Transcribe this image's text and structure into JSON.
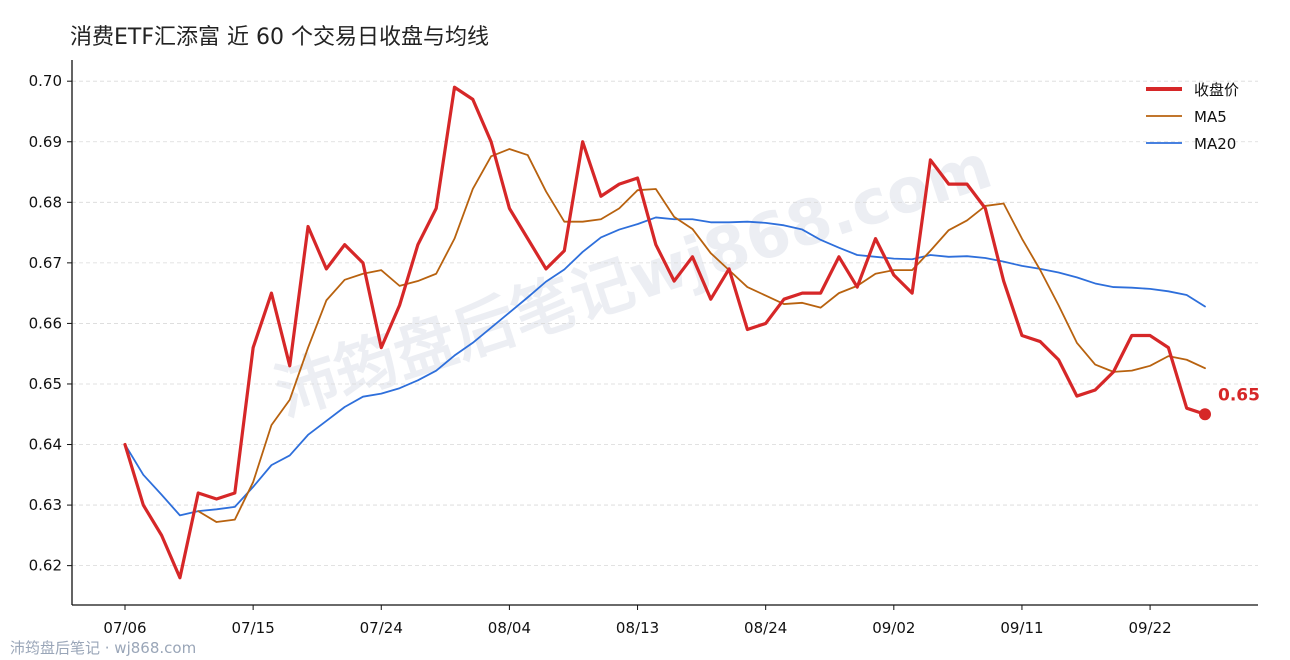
{
  "colors": {
    "close": "#d62728",
    "ma5": "#b8620f",
    "ma20": "#2e6fdb",
    "grid": "#d9d9d9",
    "axis": "#111111"
  },
  "footer_text": "沛筠盘后笔记 · wj868.com",
  "watermark_text": "沛筠盘后笔记wj868.com",
  "chart_data": {
    "type": "line",
    "title": "消费ETF汇添富 近 60 个交易日收盘与均线",
    "xlabel": "",
    "ylabel": "",
    "ylim": [
      0.6135,
      0.7035
    ],
    "yticks": [
      "0.62",
      "0.63",
      "0.64",
      "0.65",
      "0.66",
      "0.67",
      "0.68",
      "0.69",
      "0.70"
    ],
    "ytick_values": [
      0.62,
      0.63,
      0.64,
      0.65,
      0.66,
      0.67,
      0.68,
      0.69,
      0.7
    ],
    "xticks": [
      "07/06",
      "07/15",
      "07/24",
      "08/04",
      "08/13",
      "08/24",
      "09/02",
      "09/11",
      "09/22"
    ],
    "xtick_index": [
      0,
      7,
      14,
      21,
      28,
      35,
      42,
      49,
      56
    ],
    "grid": "horizontal",
    "legend_position": "top-right",
    "x": [
      "07/06",
      "07/07",
      "07/08",
      "07/09",
      "07/10",
      "07/13",
      "07/14",
      "07/15",
      "07/16",
      "07/17",
      "07/20",
      "07/21",
      "07/22",
      "07/23",
      "07/24",
      "07/27",
      "07/28",
      "07/29",
      "07/30",
      "07/31",
      "08/03",
      "08/04",
      "08/05",
      "08/06",
      "08/07",
      "08/10",
      "08/11",
      "08/12",
      "08/13",
      "08/14",
      "08/17",
      "08/18",
      "08/19",
      "08/20",
      "08/21",
      "08/24",
      "08/25",
      "08/26",
      "08/27",
      "08/28",
      "08/31",
      "09/01",
      "09/02",
      "09/03",
      "09/04",
      "09/07",
      "09/08",
      "09/09",
      "09/10",
      "09/11",
      "09/14",
      "09/15",
      "09/16",
      "09/17",
      "09/18",
      "09/21",
      "09/22",
      "09/23",
      "09/24",
      "09/25"
    ],
    "series": [
      {
        "name": "收盘价",
        "values": [
          0.64,
          0.63,
          0.625,
          0.618,
          0.632,
          0.631,
          0.632,
          0.656,
          0.665,
          0.653,
          0.676,
          0.669,
          0.673,
          0.67,
          0.656,
          0.663,
          0.673,
          0.679,
          0.699,
          0.697,
          0.69,
          0.679,
          0.674,
          0.669,
          0.672,
          0.69,
          0.681,
          0.683,
          0.684,
          0.673,
          0.667,
          0.671,
          0.664,
          0.669,
          0.659,
          0.66,
          0.664,
          0.665,
          0.665,
          0.671,
          0.666,
          0.674,
          0.668,
          0.665,
          0.687,
          0.683,
          0.683,
          0.679,
          0.667,
          0.658,
          0.657,
          0.654,
          0.648,
          0.649,
          0.652,
          0.658,
          0.658,
          0.656,
          0.646,
          0.645
        ]
      },
      {
        "name": "MA5",
        "values": [
          null,
          null,
          null,
          null,
          0.629,
          0.6272,
          0.6276,
          0.6338,
          0.6432,
          0.6474,
          0.656,
          0.6638,
          0.6672,
          0.6682,
          0.6688,
          0.6662,
          0.667,
          0.6682,
          0.674,
          0.6822,
          0.6876,
          0.6888,
          0.6878,
          0.6818,
          0.6768,
          0.6768,
          0.6772,
          0.679,
          0.682,
          0.6822,
          0.6776,
          0.6756,
          0.6716,
          0.6688,
          0.666,
          0.6646,
          0.6632,
          0.6634,
          0.6626,
          0.665,
          0.6662,
          0.6682,
          0.6688,
          0.6688,
          0.672,
          0.6754,
          0.677,
          0.6794,
          0.6798,
          0.674,
          0.6688,
          0.663,
          0.6568,
          0.6532,
          0.652,
          0.6522,
          0.653,
          0.6546,
          0.654,
          0.6526
        ]
      },
      {
        "name": "MA20",
        "values": [
          0.64,
          0.635,
          0.6317,
          0.6283,
          0.629,
          0.6293,
          0.6297,
          0.633,
          0.6366,
          0.6382,
          0.6416,
          0.6439,
          0.6462,
          0.6479,
          0.6484,
          0.6493,
          0.6506,
          0.6522,
          0.6547,
          0.6568,
          0.6593,
          0.6618,
          0.6643,
          0.6669,
          0.6689,
          0.6718,
          0.6742,
          0.6755,
          0.6764,
          0.6775,
          0.6772,
          0.6772,
          0.6767,
          0.6767,
          0.6768,
          0.6766,
          0.6762,
          0.6755,
          0.6738,
          0.6725,
          0.6713,
          0.671,
          0.6707,
          0.6706,
          0.6713,
          0.671,
          0.6711,
          0.6708,
          0.6702,
          0.6695,
          0.669,
          0.6684,
          0.6676,
          0.6666,
          0.666,
          0.6659,
          0.6657,
          0.6653,
          0.6647,
          0.6628
        ]
      }
    ],
    "annotations": [
      {
        "text": "0.65",
        "series": "收盘价",
        "index": 59
      }
    ]
  }
}
